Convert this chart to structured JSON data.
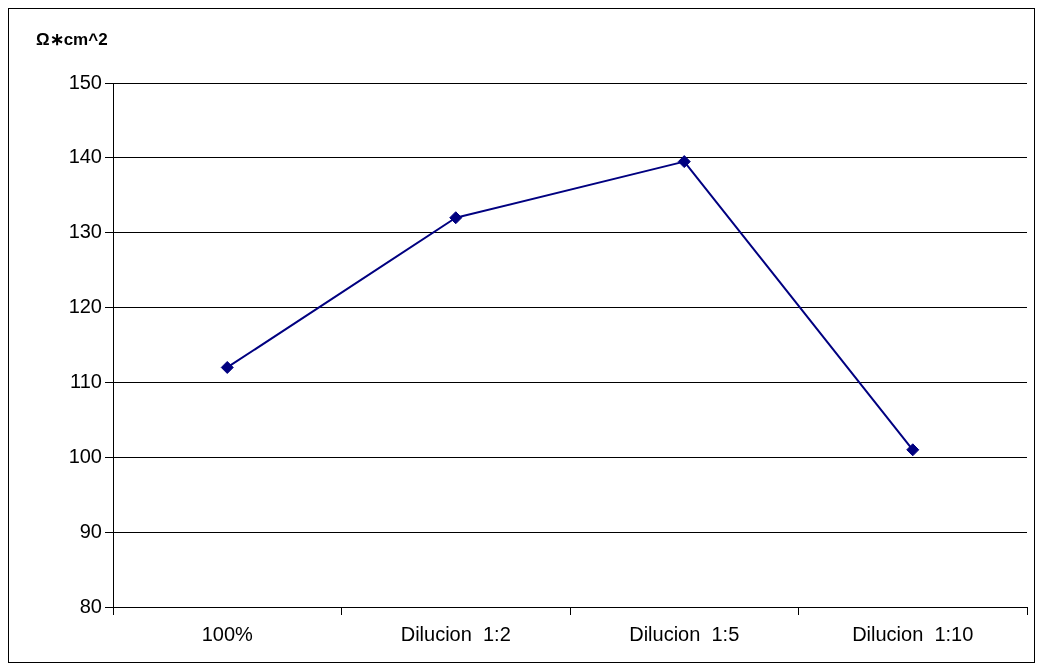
{
  "chart_data": {
    "type": "line",
    "ylabel": "Ω∗cm^2",
    "categories": [
      "100%",
      "Dilucion  1:2",
      "Dilucion  1:5",
      "Dilucion  1:10"
    ],
    "series": [
      {
        "color": "#000080",
        "values": [
          112,
          132,
          139.5,
          101
        ]
      }
    ],
    "ylim": [
      80,
      150
    ],
    "yticks": [
      80,
      90,
      100,
      110,
      120,
      130,
      140,
      150
    ],
    "grid": "y",
    "legend": false,
    "marker": "diamond",
    "line_style": "solid"
  }
}
